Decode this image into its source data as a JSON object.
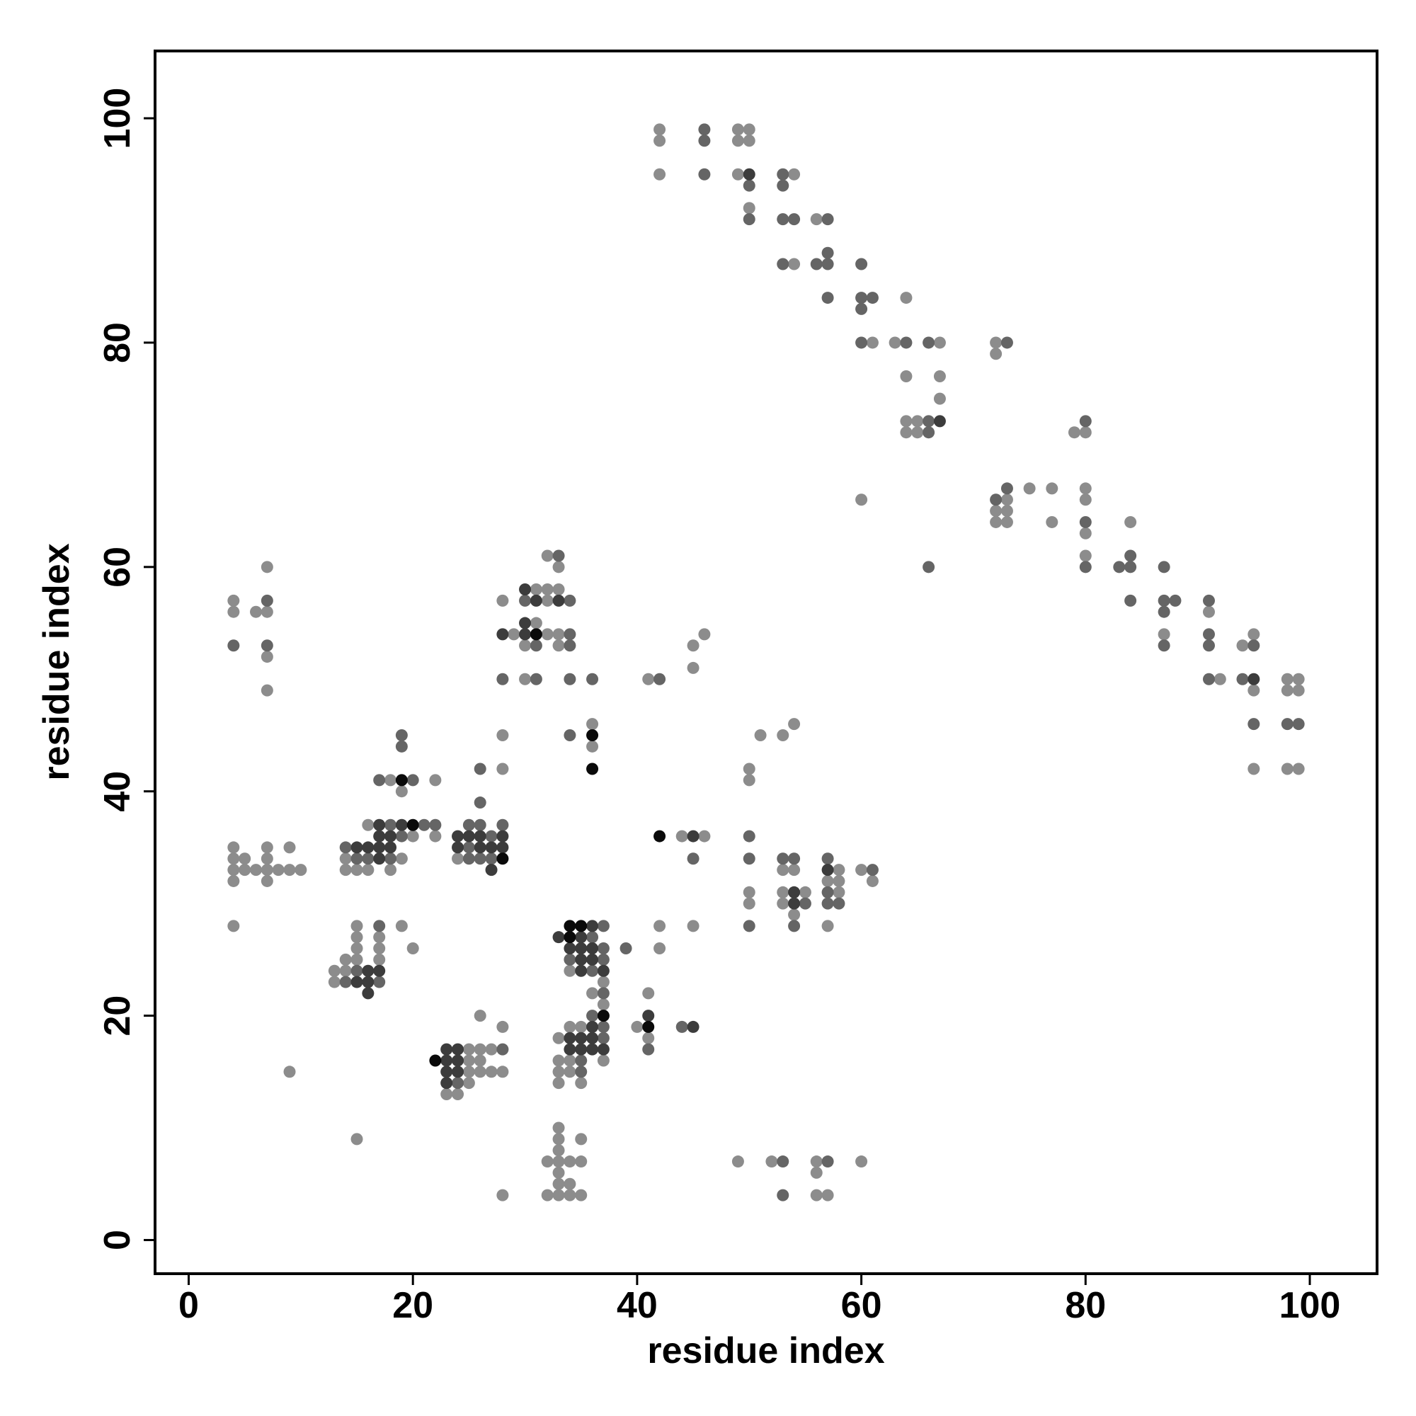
{
  "chart_data": {
    "type": "scatter",
    "xlabel": "residue index",
    "ylabel": "residue index",
    "xlim": [
      -3,
      106
    ],
    "ylim": [
      -3,
      106
    ],
    "xticks": [
      0,
      20,
      40,
      60,
      80,
      100
    ],
    "yticks": [
      0,
      20,
      40,
      60,
      80,
      100
    ],
    "series": [
      {
        "color": "#8c8c8c",
        "x": [
          42,
          42,
          42,
          49,
          49,
          49,
          50,
          50,
          50,
          54,
          54,
          56,
          60,
          61,
          63,
          64,
          64,
          64,
          64,
          65,
          65,
          67,
          67,
          67,
          72,
          72,
          72,
          72,
          73,
          73,
          73,
          75,
          77,
          77,
          79,
          80,
          80,
          80,
          80,
          80,
          84,
          87,
          91,
          92,
          94,
          95,
          95,
          95,
          98,
          98,
          98,
          99,
          99,
          99,
          4,
          4,
          4,
          4,
          4,
          4,
          4,
          5,
          5,
          6,
          6,
          7,
          7,
          7,
          7,
          7,
          7,
          7,
          7,
          8,
          9,
          9,
          9,
          10,
          14,
          14,
          14,
          14,
          13,
          13,
          15,
          15,
          15,
          15,
          15,
          15,
          16,
          16,
          17,
          17,
          17,
          18,
          18,
          19,
          19,
          19,
          20,
          20,
          22,
          22,
          23,
          24,
          24,
          25,
          25,
          25,
          25,
          26,
          26,
          26,
          26,
          27,
          27,
          28,
          28,
          28,
          28,
          28,
          28,
          29,
          30,
          30,
          31,
          31,
          32,
          32,
          32,
          32,
          32,
          32,
          33,
          33,
          33,
          33,
          33,
          33,
          33,
          33,
          33,
          33,
          33,
          33,
          33,
          33,
          33,
          34,
          34,
          34,
          34,
          34,
          34,
          34,
          35,
          35,
          35,
          35,
          35,
          36,
          36,
          36,
          37,
          37,
          37,
          40,
          41,
          41,
          41,
          42,
          42,
          44,
          45,
          45,
          45,
          46,
          46,
          49,
          50,
          50,
          50,
          50,
          51,
          52,
          53,
          53,
          53,
          53,
          54,
          54,
          54,
          55,
          56,
          56,
          56,
          57,
          57,
          57,
          58,
          58,
          58,
          60,
          60,
          61
        ],
        "values": [
          99,
          98,
          95,
          99,
          98,
          95,
          99,
          98,
          92,
          95,
          87,
          91,
          66,
          80,
          80,
          84,
          77,
          73,
          72,
          73,
          72,
          80,
          77,
          75,
          80,
          79,
          65,
          64,
          66,
          65,
          64,
          67,
          67,
          64,
          72,
          72,
          67,
          66,
          63,
          61,
          64,
          54,
          56,
          50,
          53,
          54,
          49,
          42,
          50,
          49,
          42,
          50,
          49,
          42,
          57,
          56,
          35,
          34,
          33,
          32,
          28,
          34,
          33,
          56,
          33,
          60,
          56,
          52,
          49,
          35,
          34,
          33,
          32,
          33,
          35,
          33,
          15,
          33,
          34,
          33,
          25,
          24,
          24,
          23,
          33,
          28,
          27,
          26,
          25,
          9,
          37,
          33,
          27,
          26,
          25,
          41,
          33,
          40,
          34,
          28,
          36,
          26,
          41,
          36,
          13,
          34,
          13,
          17,
          16,
          15,
          14,
          20,
          17,
          16,
          15,
          17,
          15,
          57,
          45,
          42,
          19,
          15,
          4,
          54,
          53,
          50,
          58,
          55,
          61,
          58,
          57,
          54,
          7,
          4,
          60,
          58,
          54,
          53,
          18,
          16,
          15,
          14,
          10,
          9,
          8,
          7,
          6,
          5,
          4,
          24,
          19,
          16,
          15,
          7,
          5,
          4,
          19,
          14,
          9,
          7,
          4,
          46,
          44,
          22,
          23,
          21,
          16,
          19,
          50,
          22,
          18,
          28,
          26,
          36,
          53,
          51,
          28,
          54,
          36,
          7,
          42,
          41,
          31,
          30,
          45,
          7,
          45,
          33,
          31,
          30,
          46,
          33,
          29,
          31,
          7,
          6,
          4,
          32,
          28,
          4,
          33,
          32,
          31,
          33,
          7,
          32
        ]
      },
      {
        "color": "#656565",
        "x": [
          46,
          46,
          46,
          50,
          50,
          53,
          53,
          53,
          53,
          54,
          56,
          57,
          57,
          57,
          57,
          60,
          60,
          60,
          60,
          61,
          64,
          66,
          66,
          66,
          66,
          72,
          73,
          73,
          80,
          80,
          80,
          83,
          84,
          84,
          84,
          87,
          87,
          87,
          87,
          88,
          91,
          91,
          91,
          91,
          94,
          95,
          95,
          98,
          99,
          4,
          7,
          7,
          14,
          14,
          15,
          15,
          16,
          17,
          17,
          17,
          18,
          18,
          19,
          19,
          19,
          20,
          21,
          22,
          24,
          25,
          25,
          25,
          26,
          26,
          26,
          26,
          27,
          27,
          28,
          28,
          28,
          30,
          31,
          31,
          33,
          34,
          34,
          34,
          34,
          34,
          34,
          35,
          35,
          36,
          36,
          36,
          36,
          37,
          37,
          37,
          37,
          37,
          37,
          39,
          41,
          42,
          44,
          45,
          50,
          50,
          50,
          53,
          53,
          53,
          54,
          54,
          55,
          57,
          57,
          57,
          57,
          58,
          61
        ],
        "values": [
          99,
          98,
          95,
          94,
          91,
          95,
          94,
          91,
          87,
          91,
          87,
          91,
          88,
          87,
          84,
          87,
          84,
          83,
          80,
          84,
          80,
          80,
          73,
          72,
          60,
          66,
          80,
          67,
          73,
          64,
          60,
          60,
          61,
          60,
          57,
          60,
          57,
          56,
          53,
          57,
          57,
          54,
          53,
          50,
          50,
          53,
          46,
          46,
          46,
          53,
          57,
          53,
          35,
          23,
          34,
          24,
          34,
          41,
          28,
          23,
          37,
          34,
          45,
          44,
          36,
          41,
          37,
          37,
          14,
          37,
          35,
          34,
          42,
          39,
          37,
          34,
          36,
          34,
          50,
          37,
          17,
          57,
          53,
          50,
          61,
          57,
          54,
          53,
          50,
          45,
          25,
          16,
          15,
          50,
          27,
          24,
          20,
          28,
          26,
          25,
          22,
          19,
          18,
          26,
          17,
          50,
          19,
          34,
          36,
          34,
          28,
          34,
          7,
          4,
          34,
          28,
          30,
          34,
          31,
          30,
          7,
          30,
          33
        ]
      },
      {
        "color": "#3c3c3c",
        "x": [
          50,
          67,
          95,
          15,
          15,
          16,
          16,
          16,
          16,
          17,
          17,
          17,
          17,
          17,
          18,
          18,
          19,
          23,
          23,
          23,
          23,
          24,
          24,
          24,
          24,
          24,
          25,
          26,
          26,
          27,
          27,
          28,
          28,
          28,
          30,
          30,
          30,
          31,
          33,
          33,
          34,
          34,
          34,
          35,
          35,
          35,
          35,
          35,
          35,
          36,
          36,
          36,
          36,
          36,
          36,
          37,
          37,
          41,
          45,
          45,
          54,
          54,
          57
        ],
        "values": [
          95,
          73,
          50,
          35,
          23,
          35,
          24,
          23,
          22,
          37,
          36,
          35,
          34,
          24,
          36,
          35,
          37,
          17,
          16,
          15,
          14,
          36,
          35,
          17,
          16,
          15,
          36,
          36,
          35,
          35,
          33,
          54,
          36,
          35,
          58,
          55,
          54,
          57,
          57,
          27,
          26,
          18,
          17,
          27,
          26,
          25,
          24,
          18,
          17,
          28,
          26,
          25,
          19,
          18,
          17,
          24,
          17,
          20,
          36,
          19,
          31,
          30,
          33
        ]
      },
      {
        "color": "#0a0a0a",
        "x": [
          19,
          20,
          22,
          28,
          31,
          34,
          34,
          35,
          36,
          36,
          37,
          41,
          42
        ],
        "values": [
          41,
          37,
          16,
          34,
          54,
          28,
          27,
          28,
          45,
          42,
          20,
          19,
          36
        ]
      }
    ]
  }
}
